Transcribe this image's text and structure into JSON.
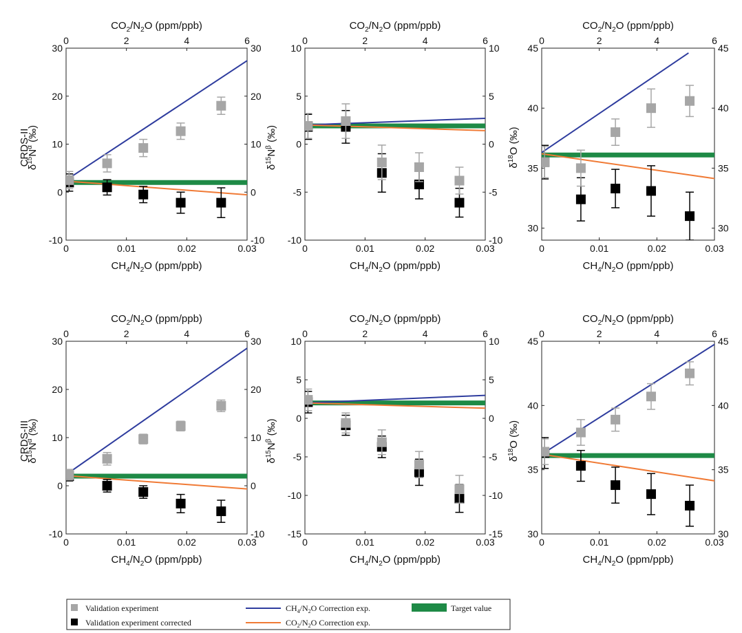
{
  "x_bottom_label": {
    "a": "CH",
    "b": "4",
    "c": "/N",
    "d": "2",
    "e": "O (ppm/ppb)"
  },
  "x_top_label": {
    "a": "CO",
    "b": "2",
    "c": "/N",
    "d": "2",
    "e": "O (ppm/ppb)"
  },
  "row_labels": [
    "CRDS-II",
    "CRDS-III"
  ],
  "y_labels": {
    "n15a": {
      "pre": "δ",
      "sup": "15",
      "mid": "N",
      "sup2": "α",
      "post": " (‰)"
    },
    "n15b": {
      "pre": "δ",
      "sup": "15",
      "mid": "N",
      "sup2": "β",
      "post": " (‰)"
    },
    "o18": {
      "pre": "δ",
      "sup": "18",
      "mid": "O",
      "sup2": "",
      "post": " (‰)"
    }
  },
  "legend": {
    "validation": "Validation experiment",
    "validation_corrected": "Validation experiment corrected",
    "ch4_line": {
      "a": "CH",
      "b": "4",
      "c": "/N",
      "d": "2",
      "e": "O Correction exp."
    },
    "co2_line": {
      "a": "CO",
      "b": "2",
      "c": "/N",
      "d": "2",
      "e": "O Correction exp."
    },
    "target": "Target value"
  },
  "colors": {
    "validation": "#a6a6a6",
    "corrected": "#000000",
    "ch4_line": "#2e3c9e",
    "co2_line": "#f07a35",
    "target": "#1e8a46"
  },
  "chart_data": [
    {
      "type": "scatter",
      "row": "CRDS-II",
      "panel": "n15a",
      "xlim": [
        0,
        0.03
      ],
      "xticks": [
        0,
        0.01,
        0.02,
        0.03
      ],
      "xticklabels": [
        "0",
        "0.01",
        "0.02",
        "0.03"
      ],
      "x2lim": [
        0,
        6
      ],
      "x2ticks": [
        0,
        2,
        4,
        6
      ],
      "ylim": [
        -10,
        30
      ],
      "yticks": [
        -10,
        0,
        10,
        20,
        30
      ],
      "x": [
        0.0005,
        0.0068,
        0.0128,
        0.019,
        0.0257
      ],
      "validation": {
        "y": [
          2.5,
          6.0,
          9.2,
          12.7,
          18.0
        ],
        "err": [
          1.8,
          1.8,
          1.8,
          1.7,
          1.8
        ]
      },
      "corrected": {
        "y": [
          2.0,
          1.0,
          -0.5,
          -2.2,
          -2.2
        ],
        "err": [
          1.8,
          1.6,
          1.7,
          2.2,
          3.1
        ]
      },
      "ch4_line": [
        [
          0,
          2.5
        ],
        [
          0.0305,
          27.8
        ]
      ],
      "co2_line": [
        [
          0,
          2.3
        ],
        [
          0.0305,
          -0.6
        ]
      ],
      "target": 2.0
    },
    {
      "type": "scatter",
      "row": "CRDS-II",
      "panel": "n15b",
      "xlim": [
        0,
        0.03
      ],
      "xticks": [
        0,
        0.01,
        0.02,
        0.03
      ],
      "xticklabels": [
        "0",
        "0.01",
        "0.02",
        "0.03"
      ],
      "x2lim": [
        0,
        6
      ],
      "x2ticks": [
        0,
        2,
        4,
        6
      ],
      "ylim": [
        -10,
        10
      ],
      "yticks": [
        -10,
        -5,
        0,
        5,
        10
      ],
      "x": [
        0.0005,
        0.0068,
        0.0128,
        0.019,
        0.0257
      ],
      "validation": {
        "y": [
          1.9,
          2.4,
          -1.9,
          -2.4,
          -3.8
        ],
        "err": [
          1.3,
          1.8,
          1.8,
          1.5,
          1.4
        ]
      },
      "corrected": {
        "y": [
          1.8,
          1.8,
          -3.0,
          -4.2,
          -6.1
        ],
        "err": [
          1.3,
          1.7,
          2.0,
          1.5,
          1.5
        ]
      },
      "ch4_line": [
        [
          0,
          2.0
        ],
        [
          0.0305,
          2.7
        ]
      ],
      "co2_line": [
        [
          0,
          2.0
        ],
        [
          0.0305,
          1.4
        ]
      ],
      "target": 1.9
    },
    {
      "type": "scatter",
      "row": "CRDS-II",
      "panel": "o18",
      "xlim": [
        0,
        0.03
      ],
      "xticks": [
        0,
        0.01,
        0.02,
        0.03
      ],
      "xticklabels": [
        "0",
        "0.01",
        "0.02",
        "0.03"
      ],
      "x2lim": [
        0,
        6
      ],
      "x2ticks": [
        0,
        2,
        4,
        6
      ],
      "ylim": [
        29,
        45
      ],
      "yticks": [
        30,
        35,
        40,
        45
      ],
      "x": [
        0.0005,
        0.0068,
        0.0128,
        0.019,
        0.0257
      ],
      "validation": {
        "y": [
          35.5,
          35.0,
          38.0,
          40.0,
          40.6
        ],
        "err": [
          1.3,
          1.5,
          1.1,
          1.6,
          1.3
        ]
      },
      "corrected": {
        "y": [
          35.5,
          32.4,
          33.3,
          33.1,
          31.0
        ],
        "err": [
          1.4,
          1.8,
          1.6,
          2.1,
          2.0
        ]
      },
      "ch4_line": [
        [
          0,
          36.3
        ],
        [
          0.0255,
          44.6
        ]
      ],
      "co2_line": [
        [
          0,
          36.2
        ],
        [
          0.0305,
          34.1
        ]
      ],
      "target": 36.1
    },
    {
      "type": "scatter",
      "row": "CRDS-III",
      "panel": "n15a",
      "xlim": [
        0,
        0.03
      ],
      "xticks": [
        0,
        0.01,
        0.02,
        0.03
      ],
      "xticklabels": [
        "0",
        "0.01",
        "0.02",
        "0.03"
      ],
      "x2lim": [
        0,
        6
      ],
      "x2ticks": [
        0,
        2,
        4,
        6
      ],
      "ylim": [
        -10,
        30
      ],
      "yticks": [
        -10,
        0,
        10,
        20,
        30
      ],
      "x": [
        0.0005,
        0.0068,
        0.0128,
        0.019,
        0.0257
      ],
      "validation": {
        "y": [
          2.3,
          5.6,
          9.7,
          12.4,
          16.6
        ],
        "err": [
          1.1,
          1.3,
          1.0,
          1.0,
          1.2
        ]
      },
      "corrected": {
        "y": [
          2.0,
          0.0,
          -1.3,
          -3.7,
          -5.3
        ],
        "err": [
          1.0,
          1.3,
          1.3,
          1.9,
          2.3
        ]
      },
      "ch4_line": [
        [
          0,
          2.3
        ],
        [
          0.0305,
          29.0
        ]
      ],
      "co2_line": [
        [
          0,
          2.1
        ],
        [
          0.0305,
          -0.7
        ]
      ],
      "target": 2.0
    },
    {
      "type": "scatter",
      "row": "CRDS-III",
      "panel": "n15b",
      "xlim": [
        0,
        0.03
      ],
      "xticks": [
        0,
        0.01,
        0.02,
        0.03
      ],
      "xticklabels": [
        "0",
        "0.01",
        "0.02",
        "0.03"
      ],
      "x2lim": [
        0,
        6
      ],
      "x2ticks": [
        0,
        2,
        4,
        6
      ],
      "ylim": [
        -15,
        10
      ],
      "yticks": [
        -15,
        -10,
        -5,
        0,
        5,
        10
      ],
      "x": [
        0.0005,
        0.0068,
        0.0128,
        0.019,
        0.0257
      ],
      "validation": {
        "y": [
          2.4,
          -0.6,
          -3.1,
          -6.0,
          -9.2
        ],
        "err": [
          1.4,
          1.3,
          1.6,
          1.7,
          1.8
        ]
      },
      "corrected": {
        "y": [
          2.1,
          -0.9,
          -3.7,
          -7.0,
          -10.4
        ],
        "err": [
          1.4,
          1.3,
          1.4,
          1.7,
          1.8
        ]
      },
      "ch4_line": [
        [
          0,
          2.0
        ],
        [
          0.0305,
          3.0
        ]
      ],
      "co2_line": [
        [
          0,
          2.0
        ],
        [
          0.0305,
          1.3
        ]
      ],
      "target": 2.0
    },
    {
      "type": "scatter",
      "row": "CRDS-III",
      "panel": "o18",
      "xlim": [
        0,
        0.03
      ],
      "xticks": [
        0,
        0.01,
        0.02,
        0.03
      ],
      "xticklabels": [
        "0",
        "0.01",
        "0.02",
        "0.03"
      ],
      "x2lim": [
        0,
        6
      ],
      "x2ticks": [
        0,
        2,
        4,
        6
      ],
      "ylim": [
        30,
        45
      ],
      "yticks": [
        30,
        35,
        40,
        45
      ],
      "x": [
        0.0005,
        0.0068,
        0.0128,
        0.019,
        0.0257
      ],
      "validation": {
        "y": [
          36.4,
          37.9,
          38.9,
          40.7,
          42.5
        ],
        "err": [
          1.0,
          1.0,
          0.9,
          1.0,
          0.9
        ]
      },
      "corrected": {
        "y": [
          36.3,
          35.3,
          33.8,
          33.1,
          32.2
        ],
        "err": [
          1.2,
          1.2,
          1.4,
          1.6,
          1.6
        ]
      },
      "ch4_line": [
        [
          0,
          36.2
        ],
        [
          0.0305,
          44.9
        ]
      ],
      "co2_line": [
        [
          0,
          36.2
        ],
        [
          0.0305,
          34.1
        ]
      ],
      "target": 36.1
    }
  ]
}
